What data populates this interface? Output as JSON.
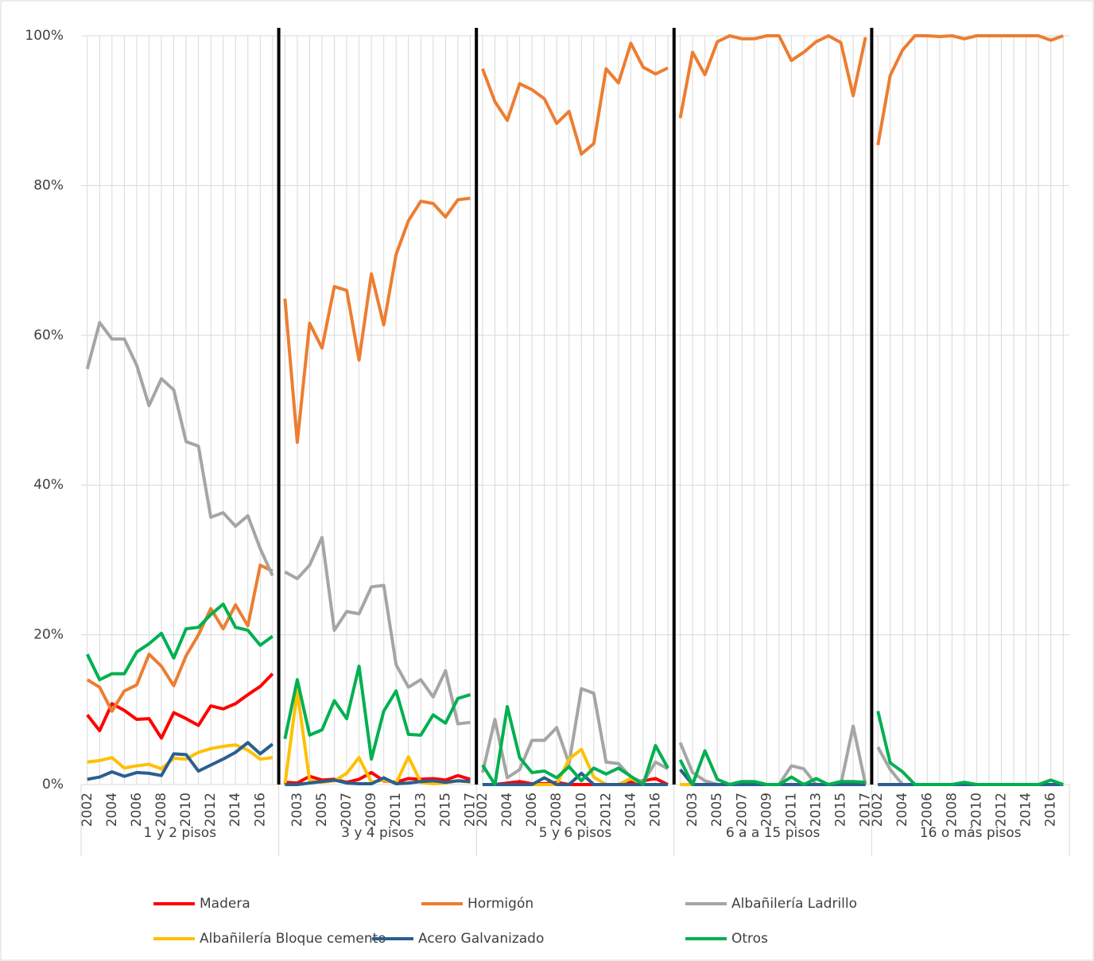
{
  "chart_data": [
    {
      "type": "line",
      "group": "1 y 2 pisos",
      "categories": [
        "2002",
        null,
        "2004",
        null,
        "2006",
        null,
        "2008",
        null,
        "2010",
        null,
        "2012",
        null,
        "2014",
        null,
        "2016",
        null
      ],
      "ylim": [
        0,
        100
      ],
      "yticks": [
        {
          "value": 0,
          "label": "0%"
        },
        {
          "value": 20,
          "label": "20%"
        },
        {
          "value": 40,
          "label": "40%"
        },
        {
          "value": 60,
          "label": "60%"
        },
        {
          "value": 80,
          "label": "80%"
        },
        {
          "value": 100,
          "label": "100%"
        }
      ],
      "series": [
        {
          "name": "Madera",
          "color": "#ff0000",
          "values": [
            9.3,
            7.2,
            10.8,
            9.9,
            8.7,
            8.8,
            6.2,
            9.6,
            8.8,
            7.9,
            10.5,
            10.1,
            10.8,
            12.0,
            13.1,
            14.8
          ]
        },
        {
          "name": "Hormigón",
          "color": "#ed7d31",
          "values": [
            14.0,
            13.0,
            9.8,
            12.5,
            13.3,
            17.4,
            15.8,
            13.2,
            17.2,
            20.0,
            23.5,
            20.8,
            24.0,
            21.2,
            29.3,
            28.5
          ]
        },
        {
          "name": "Albañilería Ladrillo",
          "color": "#a5a5a5",
          "values": [
            55.5,
            61.7,
            59.5,
            59.5,
            56.0,
            50.6,
            54.2,
            52.7,
            45.8,
            45.2,
            35.7,
            36.3,
            34.5,
            35.9,
            31.5,
            27.9
          ]
        },
        {
          "name": "Albañilería Bloque cemento",
          "color": "#ffc000",
          "values": [
            3.0,
            3.2,
            3.6,
            2.2,
            2.5,
            2.7,
            2.1,
            3.5,
            3.4,
            4.3,
            4.8,
            5.1,
            5.3,
            4.6,
            3.4,
            3.6
          ]
        },
        {
          "name": "Acero Galvanizado",
          "color": "#2a5f8f",
          "values": [
            0.7,
            1.0,
            1.7,
            1.1,
            1.6,
            1.5,
            1.2,
            4.1,
            4.0,
            1.8,
            2.6,
            3.4,
            4.3,
            5.6,
            4.1,
            5.4
          ]
        },
        {
          "name": "Otros",
          "color": "#00b050",
          "values": [
            17.4,
            14.0,
            14.8,
            14.8,
            17.7,
            18.8,
            20.2,
            16.9,
            20.8,
            21.0,
            22.7,
            24.1,
            21.0,
            20.6,
            18.6,
            19.8
          ]
        }
      ]
    },
    {
      "type": "line",
      "group": "3 y 4 pisos",
      "categories": [
        null,
        "2003",
        null,
        "2005",
        null,
        "2007",
        null,
        "2009",
        null,
        "2011",
        null,
        "2013",
        null,
        "2015",
        null,
        "2017"
      ],
      "ylim": [
        0,
        100
      ],
      "series": [
        {
          "name": "Madera",
          "color": "#ff0000",
          "values": [
            0.3,
            0.2,
            1.1,
            0.6,
            0.7,
            0.3,
            0.7,
            1.6,
            0.5,
            0.3,
            0.8,
            0.7,
            0.8,
            0.6,
            1.2,
            0.7
          ]
        },
        {
          "name": "Hormigón",
          "color": "#ed7d31",
          "values": [
            64.9,
            45.7,
            61.6,
            58.3,
            66.5,
            66.0,
            56.7,
            68.2,
            61.4,
            70.8,
            75.3,
            77.9,
            77.6,
            75.8,
            78.1,
            78.3
          ]
        },
        {
          "name": "Albañilería Ladrillo",
          "color": "#a5a5a5",
          "values": [
            28.4,
            27.5,
            29.3,
            33.0,
            20.6,
            23.1,
            22.8,
            26.4,
            26.6,
            16.0,
            13.0,
            14.0,
            11.7,
            15.2,
            8.1,
            8.3
          ]
        },
        {
          "name": "Albañilería Bloque cemento",
          "color": "#ffc000",
          "values": [
            0.0,
            12.5,
            0.5,
            0.3,
            0.5,
            1.5,
            3.6,
            0.3,
            0.6,
            0.2,
            3.7,
            0.3,
            0.1,
            0.2,
            0.5,
            0.3
          ]
        },
        {
          "name": "Acero Galvanizado",
          "color": "#2a5f8f",
          "values": [
            0,
            0,
            0.2,
            0.4,
            0.6,
            0.2,
            0.1,
            0.1,
            0.9,
            0.1,
            0.2,
            0.4,
            0.5,
            0.3,
            0.5,
            0.4
          ]
        },
        {
          "name": "Otros",
          "color": "#00b050",
          "values": [
            6.1,
            14.0,
            6.6,
            7.3,
            11.2,
            8.8,
            15.8,
            3.4,
            9.8,
            12.5,
            6.7,
            6.6,
            9.3,
            8.2,
            11.5,
            12.0
          ]
        }
      ]
    },
    {
      "type": "line",
      "group": "5 y 6 pisos",
      "categories": [
        "2002",
        null,
        "2004",
        null,
        "2006",
        null,
        "2008",
        null,
        "2010",
        null,
        "2012",
        null,
        "2014",
        null,
        "2016",
        null
      ],
      "ylim": [
        0,
        100
      ],
      "series": [
        {
          "name": "Madera",
          "color": "#ff0000",
          "values": [
            0,
            0,
            0.2,
            0.4,
            0.1,
            0.1,
            0.3,
            0,
            0,
            0,
            0,
            0,
            0.3,
            0.5,
            0.8,
            0
          ]
        },
        {
          "name": "Hormigón",
          "color": "#ed7d31",
          "values": [
            95.6,
            91.2,
            88.7,
            93.6,
            92.8,
            91.6,
            88.3,
            89.9,
            84.2,
            85.6,
            95.6,
            93.7,
            99.0,
            95.8,
            94.9,
            95.7
          ]
        },
        {
          "name": "Albañilería Ladrillo",
          "color": "#a5a5a5",
          "values": [
            1.6,
            8.7,
            0.9,
            2.0,
            5.9,
            5.9,
            7.6,
            2.8,
            12.8,
            12.2,
            3.0,
            2.8,
            1.0,
            0.3,
            3.0,
            2.1
          ]
        },
        {
          "name": "Albañilería Bloque cemento",
          "color": "#ffc000",
          "values": [
            0,
            0,
            0,
            0,
            0,
            0,
            0,
            3.4,
            4.7,
            1.0,
            0,
            0,
            0.8,
            0,
            0,
            0
          ]
        },
        {
          "name": "Acero Galvanizado",
          "color": "#2a5f8f",
          "values": [
            0,
            0,
            0,
            0,
            0,
            0.9,
            0,
            0,
            1.5,
            0,
            0,
            0,
            0,
            0,
            0,
            0
          ]
        },
        {
          "name": "Otros",
          "color": "#00b050",
          "values": [
            2.6,
            0,
            10.4,
            3.6,
            1.6,
            1.8,
            0.9,
            2.4,
            0.5,
            2.2,
            1.4,
            2.2,
            1.1,
            0,
            5.2,
            2.2
          ]
        }
      ]
    },
    {
      "type": "line",
      "group": "6 a a 15 pisos",
      "categories": [
        null,
        "2003",
        null,
        "2005",
        null,
        "2007",
        null,
        "2009",
        null,
        "2011",
        null,
        "2013",
        null,
        "2015",
        null,
        "2017"
      ],
      "ylim": [
        0,
        100
      ],
      "series": [
        {
          "name": "Madera",
          "color": "#ff0000",
          "values": [
            0,
            0,
            0,
            0,
            0,
            0,
            0,
            0,
            0,
            0,
            0,
            0,
            0,
            0,
            0,
            0
          ]
        },
        {
          "name": "Hormigón",
          "color": "#ed7d31",
          "values": [
            89.0,
            97.8,
            94.8,
            99.2,
            100,
            99.6,
            99.6,
            100,
            100,
            96.7,
            97.8,
            99.2,
            100,
            99.1,
            92.0,
            99.8
          ]
        },
        {
          "name": "Albañilería Ladrillo",
          "color": "#a5a5a5",
          "values": [
            5.6,
            1.6,
            0.5,
            0,
            0,
            0.4,
            0,
            0,
            0,
            2.5,
            2.1,
            0,
            0,
            0,
            7.8,
            0
          ]
        },
        {
          "name": "Albañilería Bloque cemento",
          "color": "#ffc000",
          "values": [
            0,
            0,
            0,
            0,
            0,
            0,
            0,
            0,
            0,
            0,
            0,
            0,
            0,
            0,
            0,
            0
          ]
        },
        {
          "name": "Acero Galvanizado",
          "color": "#2a5f8f",
          "values": [
            2.0,
            0,
            0,
            0,
            0,
            0,
            0,
            0,
            0,
            0,
            0,
            0,
            0,
            0,
            0,
            0
          ]
        },
        {
          "name": "Otros",
          "color": "#00b050",
          "values": [
            3.3,
            0,
            4.5,
            0.7,
            0,
            0.4,
            0.4,
            0,
            0,
            1.0,
            0,
            0.8,
            0,
            0.4,
            0.4,
            0.3
          ]
        }
      ]
    },
    {
      "type": "line",
      "group": "16 o más pisos",
      "categories": [
        "2002",
        null,
        "2004",
        null,
        "2006",
        null,
        "2008",
        null,
        "2010",
        null,
        "2012",
        null,
        "2014",
        null,
        "2016",
        null
      ],
      "ylim": [
        0,
        100
      ],
      "series": [
        {
          "name": "Madera",
          "color": "#ff0000",
          "values": [
            0,
            0,
            0,
            0,
            0,
            0,
            0,
            0,
            0,
            0,
            0,
            0,
            0,
            0,
            0,
            0
          ]
        },
        {
          "name": "Hormigón",
          "color": "#ed7d31",
          "values": [
            85.4,
            94.7,
            98.1,
            100,
            100,
            99.9,
            100,
            99.6,
            100,
            100,
            100,
            100,
            100,
            100,
            99.4,
            100
          ]
        },
        {
          "name": "Albañilería Ladrillo",
          "color": "#a5a5a5",
          "values": [
            5.0,
            2.0,
            0,
            0,
            0,
            0,
            0,
            0,
            0,
            0,
            0,
            0,
            0,
            0,
            0,
            0
          ]
        },
        {
          "name": "Albañilería Bloque cemento",
          "color": "#ffc000",
          "values": [
            0,
            0,
            0,
            0,
            0,
            0,
            0,
            0,
            0,
            0,
            0,
            0,
            0,
            0,
            0,
            0
          ]
        },
        {
          "name": "Acero Galvanizado",
          "color": "#2a5f8f",
          "values": [
            0,
            0,
            0,
            0,
            0,
            0,
            0,
            0,
            0,
            0,
            0,
            0,
            0,
            0,
            0,
            0
          ]
        },
        {
          "name": "Otros",
          "color": "#00b050",
          "values": [
            9.8,
            2.9,
            1.7,
            0,
            0,
            0,
            0,
            0.3,
            0,
            0,
            0,
            0,
            0,
            0,
            0.6,
            0
          ]
        }
      ]
    }
  ]
}
